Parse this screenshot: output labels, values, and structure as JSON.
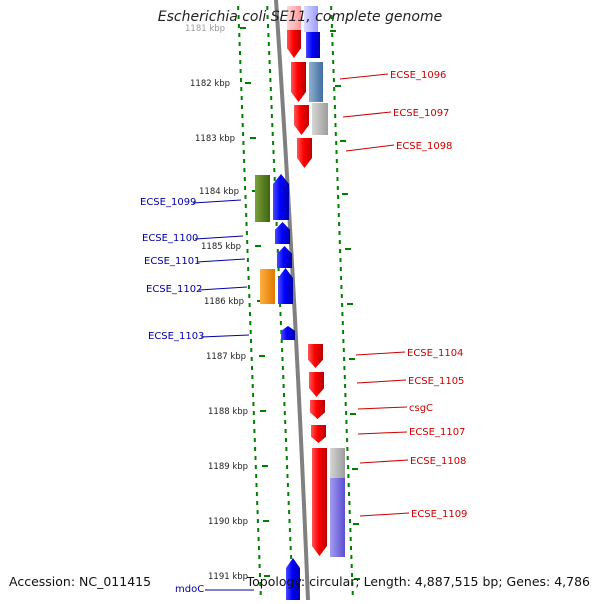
{
  "title": "Escherichia coli SE11, complete genome",
  "footer": {
    "accession": "Accession: NC_011415",
    "summary": "Topology: circular; Length: 4,887,515 bp; Genes: 4,786"
  },
  "colors": {
    "forward": "#ff0000",
    "reverse": "#0000ff",
    "ticks": "#008000",
    "backbone": "#888888"
  },
  "ticks": [
    {
      "label": "1181 kbp"
    },
    {
      "label": "1182 kbp"
    },
    {
      "label": "1183 kbp"
    },
    {
      "label": "1184 kbp"
    },
    {
      "label": "1185 kbp"
    },
    {
      "label": "1186 kbp"
    },
    {
      "label": "1187 kbp"
    },
    {
      "label": "1188 kbp"
    },
    {
      "label": "1189 kbp"
    },
    {
      "label": "1190 kbp"
    },
    {
      "label": "1191 kbp"
    }
  ],
  "genes_right": [
    {
      "label": "ECSE_1096"
    },
    {
      "label": "ECSE_1097"
    },
    {
      "label": "ECSE_1098"
    },
    {
      "label": "ECSE_1104"
    },
    {
      "label": "ECSE_1105"
    },
    {
      "label": "csgC"
    },
    {
      "label": "ECSE_1107"
    },
    {
      "label": "ECSE_1108"
    },
    {
      "label": "ECSE_1109"
    }
  ],
  "genes_left": [
    {
      "label": "ECSE_1099"
    },
    {
      "label": "ECSE_1100"
    },
    {
      "label": "ECSE_1101"
    },
    {
      "label": "ECSE_1102"
    },
    {
      "label": "ECSE_1103"
    },
    {
      "label": "mdoC"
    }
  ]
}
